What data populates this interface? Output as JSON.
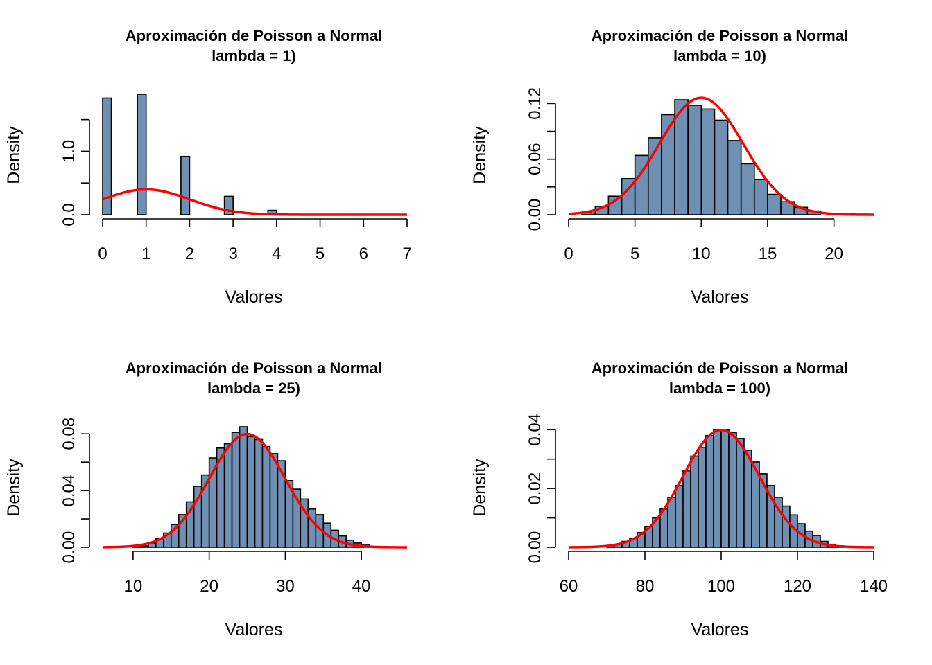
{
  "chart_data": [
    {
      "type": "bar",
      "title": "Aproximación de Poisson a Normal",
      "subtitle": "lambda = 1)",
      "xlabel": "Valores",
      "ylabel": "Density",
      "xlim": [
        0,
        7
      ],
      "ylim": [
        0,
        1.9
      ],
      "xticks": [
        "0",
        "1",
        "2",
        "3",
        "4",
        "5",
        "6",
        "7"
      ],
      "yticks": [
        "0.0",
        "",
        "1.0",
        ""
      ],
      "bin_width": 0.2,
      "bins_start": 0,
      "values": [
        1.84,
        0,
        0,
        0,
        1.9,
        0,
        0,
        0,
        0,
        0.92,
        0,
        0,
        0,
        0,
        0.29,
        0,
        0,
        0,
        0,
        0.07
      ],
      "normal_mean": 1,
      "normal_sd": 1,
      "curve_color": "#ff0000",
      "bar_color": "#6f8fb3"
    },
    {
      "type": "bar",
      "title": "Aproximación de Poisson a Normal",
      "subtitle": "lambda = 10)",
      "xlabel": "Valores",
      "ylabel": "Density",
      "xlim": [
        0,
        23
      ],
      "ylim": [
        0,
        0.13
      ],
      "xticks": [
        "0",
        "5",
        "10",
        "15",
        "20"
      ],
      "yticks": [
        "0.00",
        "",
        "0.06",
        "",
        "0.12"
      ],
      "bin_width": 1,
      "bins_start": 1,
      "values": [
        0.002,
        0.009,
        0.02,
        0.039,
        0.064,
        0.083,
        0.108,
        0.124,
        0.118,
        0.114,
        0.102,
        0.08,
        0.055,
        0.038,
        0.022,
        0.014,
        0.008,
        0.004
      ],
      "normal_mean": 10,
      "normal_sd": 3.1623,
      "curve_color": "#ff0000",
      "bar_color": "#6f8fb3"
    },
    {
      "type": "bar",
      "title": "Aproximación de Poisson a Normal",
      "subtitle": "lambda = 25)",
      "xlabel": "Valores",
      "ylabel": "Density",
      "xlim": [
        6,
        46
      ],
      "ylim": [
        0,
        0.085
      ],
      "xticks": [
        "10",
        "20",
        "30",
        "40"
      ],
      "yticks": [
        "0.00",
        "",
        "0.04",
        "",
        "0.08"
      ],
      "bin_width": 1,
      "bins_start": 10,
      "values": [
        0.001,
        0.001,
        0.003,
        0.006,
        0.01,
        0.016,
        0.023,
        0.032,
        0.043,
        0.051,
        0.063,
        0.07,
        0.073,
        0.081,
        0.085,
        0.078,
        0.076,
        0.071,
        0.066,
        0.061,
        0.047,
        0.041,
        0.034,
        0.027,
        0.023,
        0.017,
        0.012,
        0.008,
        0.005,
        0.003,
        0.002
      ],
      "normal_mean": 25,
      "normal_sd": 5,
      "curve_color": "#ff0000",
      "bar_color": "#6f8fb3"
    },
    {
      "type": "bar",
      "title": "Aproximación de Poisson a Normal",
      "subtitle": "lambda = 100)",
      "xlabel": "Valores",
      "ylabel": "Density",
      "xlim": [
        60,
        140
      ],
      "ylim": [
        0,
        0.041
      ],
      "xticks": [
        "60",
        "80",
        "100",
        "120",
        "140"
      ],
      "yticks": [
        "0.00",
        "",
        "0.02",
        "",
        "0.04"
      ],
      "bin_width": 2,
      "bins_start": 70,
      "values": [
        0.0005,
        0.001,
        0.002,
        0.003,
        0.005,
        0.007,
        0.01,
        0.013,
        0.017,
        0.021,
        0.026,
        0.031,
        0.034,
        0.038,
        0.04,
        0.04,
        0.039,
        0.037,
        0.033,
        0.029,
        0.025,
        0.021,
        0.017,
        0.014,
        0.011,
        0.008,
        0.0055,
        0.004,
        0.002,
        0.001,
        0.0005
      ],
      "normal_mean": 100,
      "normal_sd": 10,
      "curve_color": "#ff0000",
      "bar_color": "#6f8fb3"
    }
  ]
}
